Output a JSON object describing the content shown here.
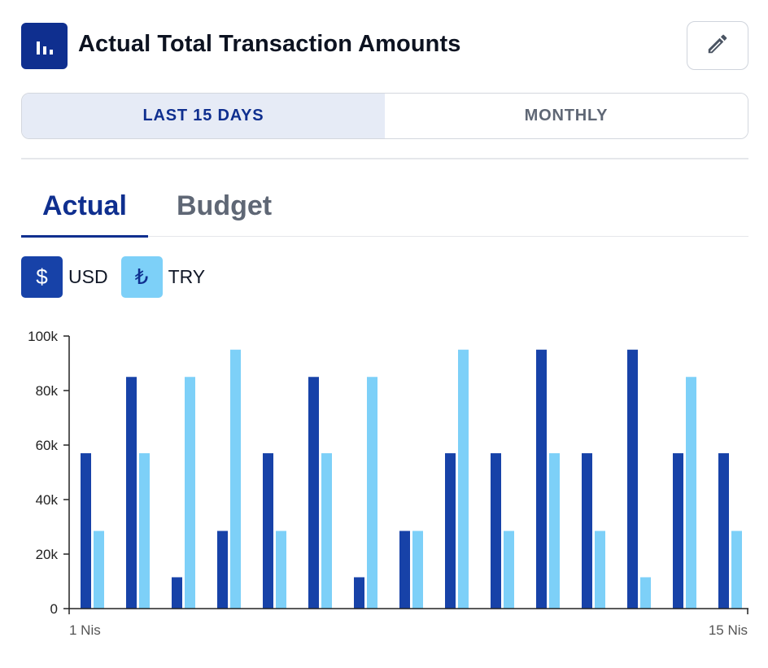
{
  "header": {
    "title": "Actual Total Transaction Amounts",
    "title_icon": "bar-chart-icon",
    "edit_icon": "pencil-icon"
  },
  "period_toggle": {
    "options": [
      "LAST 15 DAYS",
      "MONTHLY"
    ],
    "selected": "LAST 15 DAYS"
  },
  "tabs": {
    "items": [
      "Actual",
      "Budget"
    ],
    "selected": "Actual"
  },
  "legend": {
    "usd": {
      "symbol": "$",
      "label": "USD",
      "color": "#1742a8"
    },
    "try": {
      "symbol": "₺",
      "label": "TRY",
      "color": "#7dd0f8"
    }
  },
  "colors": {
    "primary": "#0f2f8f",
    "usd_bar": "#1742a8",
    "try_bar": "#7dd0f8",
    "muted_text": "#5f6775"
  },
  "chart_data": {
    "type": "bar",
    "title": "",
    "xlabel": "",
    "ylabel": "",
    "ylim": [
      0,
      100000
    ],
    "yticks": [
      0,
      20000,
      40000,
      60000,
      80000,
      100000
    ],
    "ytick_labels": [
      "0",
      "20k",
      "40k",
      "60k",
      "80k",
      "100k"
    ],
    "x_start_label": "1 Nis",
    "x_end_label": "15 Nis",
    "categories": [
      "1",
      "2",
      "3",
      "4",
      "5",
      "6",
      "7",
      "8",
      "9",
      "10",
      "11",
      "12",
      "13",
      "14",
      "15"
    ],
    "series": [
      {
        "name": "USD",
        "color": "#1742a8",
        "values": [
          57000,
          85000,
          11500,
          28500,
          57000,
          85000,
          11500,
          28500,
          57000,
          57000,
          95000,
          57000,
          95000,
          57000,
          57000
        ]
      },
      {
        "name": "TRY",
        "color": "#7dd0f8",
        "values": [
          28500,
          57000,
          85000,
          95000,
          28500,
          57000,
          85000,
          28500,
          95000,
          28500,
          57000,
          28500,
          11500,
          85000,
          28500
        ]
      }
    ]
  }
}
